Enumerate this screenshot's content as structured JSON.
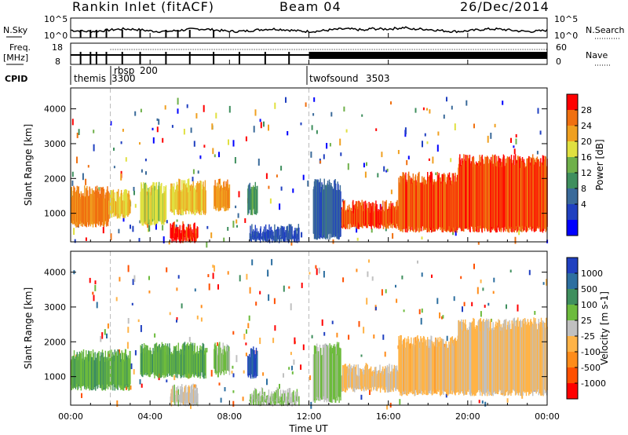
{
  "header": {
    "station": "Rankin Inlet (fitACF)",
    "beam": "Beam 04",
    "date": "26/Dec/2014"
  },
  "noise_panel": {
    "left_label": "N.Sky",
    "left_ticks": [
      "10^5",
      "10^0"
    ],
    "right_label": "N.Search",
    "right_ticks": [
      "10^5",
      "10^0"
    ]
  },
  "freq_panel": {
    "left_label_line1": "Freq.",
    "left_label_line2": "[MHz]",
    "left_ticks": [
      "18",
      "8"
    ],
    "right_label": "Nave",
    "right_ticks": [
      "60",
      "0"
    ]
  },
  "cpid_panel": {
    "label": "CPID",
    "modes": [
      {
        "name": "themis",
        "id": "3300",
        "start_hour": 0.0
      },
      {
        "name": "rbsp",
        "id": "200",
        "start_hour": 2.0
      },
      {
        "name": "twofsound",
        "id": "3503",
        "start_hour": 12.0
      }
    ]
  },
  "time_axis": {
    "label": "Time UT",
    "ticks": [
      "00:00",
      "04:00",
      "08:00",
      "12:00",
      "16:00",
      "20:00",
      "00:00"
    ],
    "start_hour": 0,
    "end_hour": 24
  },
  "chart_data": [
    {
      "type": "heatmap",
      "title": "",
      "xlabel": "Time UT",
      "ylabel": "Slant Range [km]",
      "ylim": [
        180,
        4600
      ],
      "y_ticks": [
        1000,
        2000,
        3000,
        4000
      ],
      "colorbar": {
        "label": "Power [dB]",
        "ticks": [
          "28",
          "24",
          "20",
          "16",
          "12",
          "8",
          "4"
        ],
        "range": [
          0,
          30
        ],
        "colors": [
          "#0000ff",
          "#2040c0",
          "#3a6a9a",
          "#3f8f5e",
          "#6fb04a",
          "#e0e040",
          "#f0a020",
          "#f07010",
          "#ff0000"
        ]
      },
      "blobs": [
        {
          "t0": 0.0,
          "t1": 1.9,
          "r0": 650,
          "r1": 1800,
          "value": 24
        },
        {
          "t0": 1.9,
          "t1": 3.0,
          "r0": 900,
          "r1": 1700,
          "value": 20
        },
        {
          "t0": 3.5,
          "t1": 4.8,
          "r0": 700,
          "r1": 1900,
          "value": 18
        },
        {
          "t0": 5.0,
          "t1": 6.8,
          "r0": 1000,
          "r1": 2000,
          "value": 20
        },
        {
          "t0": 5.0,
          "t1": 6.4,
          "r0": 200,
          "r1": 800,
          "value": 28
        },
        {
          "t0": 7.2,
          "t1": 8.0,
          "r0": 1100,
          "r1": 2000,
          "value": 22
        },
        {
          "t0": 8.9,
          "t1": 9.4,
          "r0": 1000,
          "r1": 1900,
          "value": 12
        },
        {
          "t0": 13.6,
          "t1": 16.5,
          "r0": 600,
          "r1": 1400,
          "value": 26
        },
        {
          "t0": 16.5,
          "t1": 19.5,
          "r0": 500,
          "r1": 2200,
          "value": 26
        },
        {
          "t0": 19.5,
          "t1": 24.0,
          "r0": 500,
          "r1": 2700,
          "value": 26
        },
        {
          "t0": 12.2,
          "t1": 13.6,
          "r0": 300,
          "r1": 2000,
          "value": 8
        },
        {
          "t0": 9.0,
          "t1": 11.5,
          "r0": 200,
          "r1": 700,
          "value": 6
        }
      ]
    },
    {
      "type": "heatmap",
      "title": "",
      "xlabel": "Time UT",
      "ylabel": "Slant Range [km]",
      "ylim": [
        180,
        4600
      ],
      "y_ticks": [
        1000,
        2000,
        3000,
        4000
      ],
      "colorbar": {
        "label": "Velocity [m s-1]",
        "ticks": [
          "1000",
          "500",
          "100",
          "25",
          "-25",
          "-100",
          "-500",
          "-1000"
        ],
        "range": [
          -1000,
          1000
        ],
        "colors": [
          "#ff0000",
          "#ff5000",
          "#ff8c1a",
          "#ffb347",
          "#c0c0c0",
          "#6dbb3d",
          "#3f8f5e",
          "#2d6fa0",
          "#2040c0"
        ]
      },
      "blobs": [
        {
          "t0": 0.0,
          "t1": 3.0,
          "r0": 650,
          "r1": 1800,
          "value": 300
        },
        {
          "t0": 3.5,
          "t1": 6.8,
          "r0": 1000,
          "r1": 2000,
          "value": 300
        },
        {
          "t0": 5.0,
          "t1": 6.4,
          "r0": 200,
          "r1": 800,
          "value": 0
        },
        {
          "t0": 7.2,
          "t1": 8.0,
          "r0": 1100,
          "r1": 2000,
          "value": 200
        },
        {
          "t0": 8.9,
          "t1": 9.4,
          "r0": 1000,
          "r1": 1900,
          "value": 800
        },
        {
          "t0": 13.6,
          "t1": 16.5,
          "r0": 600,
          "r1": 1400,
          "value": -150
        },
        {
          "t0": 16.5,
          "t1": 19.5,
          "r0": 500,
          "r1": 2200,
          "value": -200
        },
        {
          "t0": 19.5,
          "t1": 24.0,
          "r0": 500,
          "r1": 2700,
          "value": -150
        },
        {
          "t0": 12.2,
          "t1": 13.6,
          "r0": 300,
          "r1": 2000,
          "value": 150
        },
        {
          "t0": 9.0,
          "t1": 11.5,
          "r0": 200,
          "r1": 700,
          "value": 80
        }
      ]
    }
  ]
}
